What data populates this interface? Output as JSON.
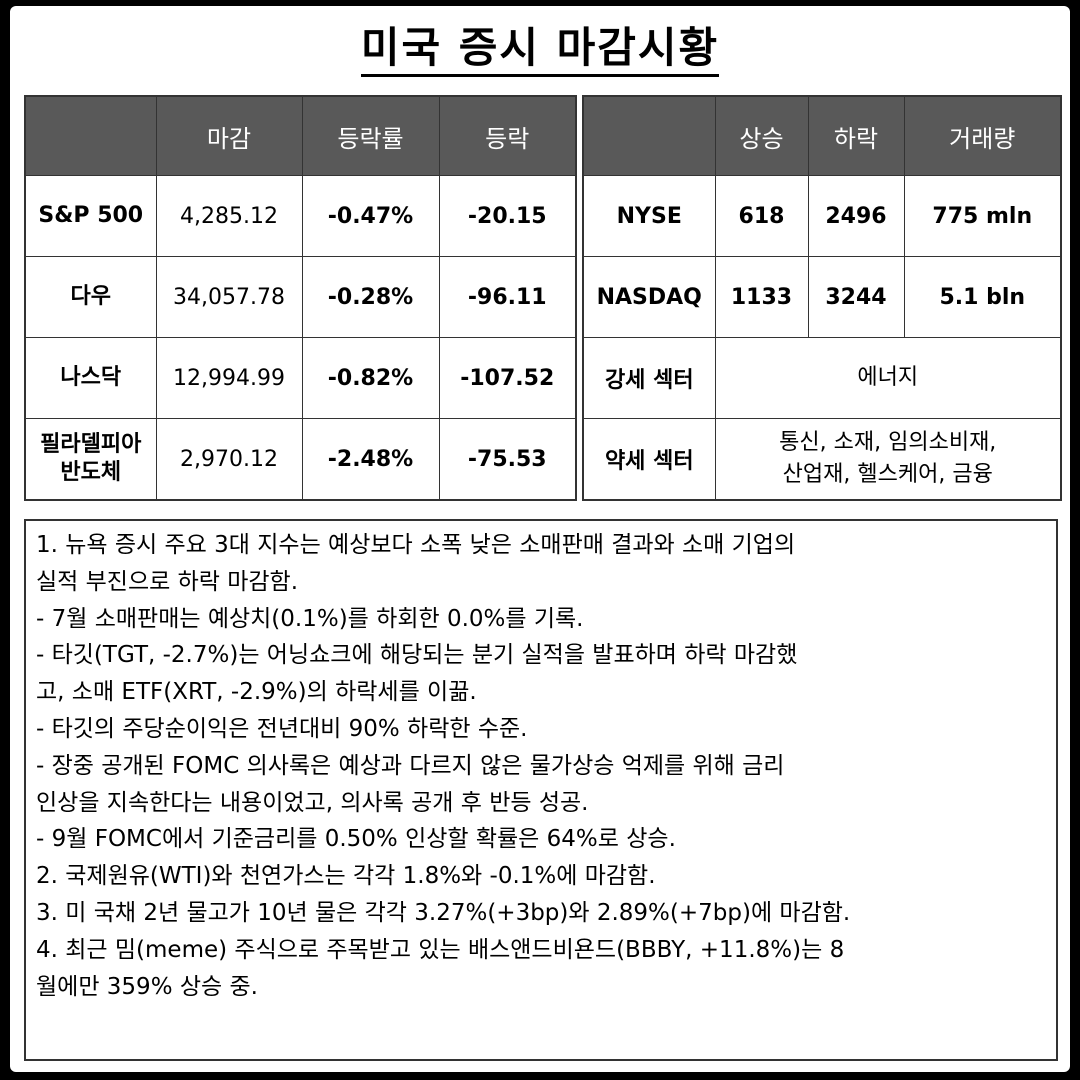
{
  "title": "미국 증시 마감시황",
  "index_table": {
    "headers": [
      "",
      "마감",
      "등락률",
      "등락"
    ],
    "rows": [
      {
        "name": "S&P 500",
        "name2": "",
        "close": "4,285.12",
        "pct": "-0.47%",
        "change": "-20.15"
      },
      {
        "name": "다우",
        "name2": "",
        "close": "34,057.78",
        "pct": "-0.28%",
        "change": "-96.11"
      },
      {
        "name": "나스닥",
        "name2": "",
        "close": "12,994.99",
        "pct": "-0.82%",
        "change": "-107.52"
      },
      {
        "name": "필라델피아",
        "name2": "반도체",
        "close": "2,970.12",
        "pct": "-2.48%",
        "change": "-75.53"
      }
    ]
  },
  "market_table": {
    "headers": [
      "",
      "상승",
      "하락",
      "거래량"
    ],
    "rows": [
      {
        "market": "NYSE",
        "up": "618",
        "down": "2496",
        "volume": "775 mln"
      },
      {
        "market": "NASDAQ",
        "up": "1133",
        "down": "3244",
        "volume": "5.1 bln"
      }
    ],
    "strong_sector": {
      "label": "강세 섹터",
      "value": "에너지"
    },
    "weak_sector": {
      "label": "약세 섹터",
      "value_line1": "통신, 소재, 임의소비재,",
      "value_line2": "산업재, 헬스케어, 금융"
    }
  },
  "notes": [
    "1. 뉴욕 증시 주요 3대 지수는 예상보다 소폭 낮은 소매판매 결과와 소매 기업의",
    "실적 부진으로 하락 마감함.",
    "- 7월 소매판매는 예상치(0.1%)를 하회한 0.0%를 기록.",
    "- 타깃(TGT, -2.7%)는 어닝쇼크에 해당되는 분기 실적을 발표하며 하락 마감했",
    "고, 소매 ETF(XRT, -2.9%)의 하락세를 이끎.",
    "- 타깃의 주당순이익은 전년대비 90% 하락한 수준.",
    "- 장중 공개된 FOMC 의사록은 예상과 다르지 않은 물가상승 억제를 위해 금리",
    "인상을 지속한다는 내용이었고, 의사록 공개 후 반등 성공.",
    "- 9월 FOMC에서 기준금리를 0.50% 인상할 확률은 64%로 상승.",
    "2. 국제원유(WTI)와 천연가스는 각각 1.8%와 -0.1%에 마감함.",
    "3. 미 국채 2년 물고가 10년 물은 각각 3.27%(+3bp)와 2.89%(+7bp)에 마감함.",
    "4. 최근 밈(meme) 주식으로 주목받고 있는 배스앤드비욘드(BBBY, +11.8%)는 8",
    "월에만 359% 상승 중."
  ],
  "colors": {
    "header_bg": "#595959",
    "up": "#e02020",
    "down": "#2222cc"
  }
}
